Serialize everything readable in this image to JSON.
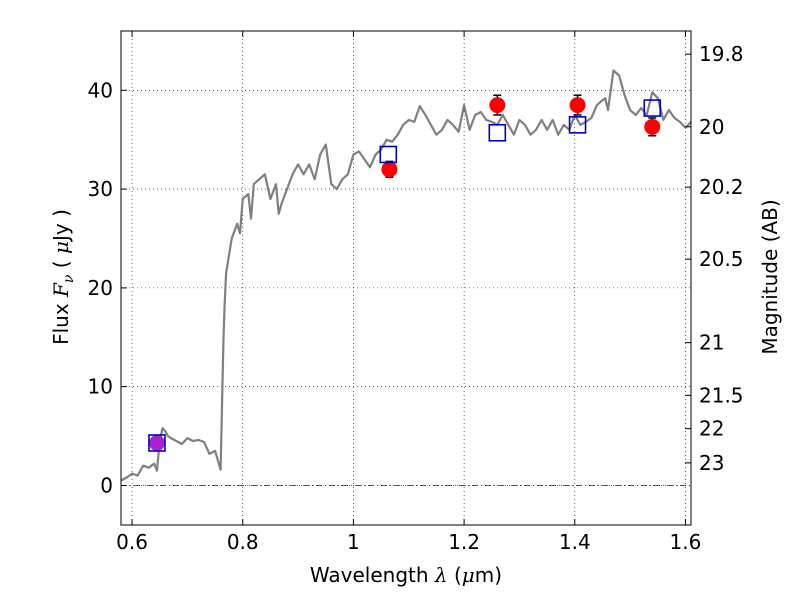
{
  "chart_data": {
    "type": "line",
    "title": "",
    "xlabel": "Wavelength",
    "xlabel_symbol": "λ",
    "xlabel_unit_open": " (",
    "xlabel_unit_symbol": "μ",
    "xlabel_unit_rest": "m)",
    "ylabel": "Flux",
    "ylabel_symbol": "F",
    "ylabel_symbol_sub": "ν",
    "ylabel_unit_open": " ( ",
    "ylabel_unit_symbol": "μ",
    "ylabel_unit_rest": "Jy )",
    "y2label": "Magnitude (AB)",
    "xlim": [
      0.58,
      1.61
    ],
    "ylim": [
      -4,
      46
    ],
    "grid": true,
    "x_ticks": [
      0.6,
      0.8,
      1.0,
      1.2,
      1.4,
      1.6
    ],
    "x_tick_labels": [
      "0.6",
      "0.8",
      "1",
      "1.2",
      "1.4",
      "1.6"
    ],
    "y_ticks": [
      0,
      10,
      20,
      30,
      40
    ],
    "y_tick_labels": [
      "0",
      "10",
      "20",
      "30",
      "40"
    ],
    "y2_ticks": [
      19.8,
      20,
      20.2,
      20.5,
      21,
      21.5,
      22,
      23
    ],
    "y2_tick_labels": [
      "19.8",
      "20",
      "20.2",
      "20.5",
      "21",
      "21.5",
      "22",
      "23"
    ],
    "zero_line": 0,
    "colors": {
      "model": "#808080",
      "observed": "#ff0000",
      "synthetic": "#0000cc",
      "overlap": "#aa22cc",
      "errorbar": "#000000"
    },
    "series": [
      {
        "kind": "spectrum",
        "x": [
          0.58,
          0.59,
          0.6,
          0.61,
          0.62,
          0.63,
          0.64,
          0.645,
          0.65,
          0.655,
          0.66,
          0.665,
          0.67,
          0.68,
          0.69,
          0.7,
          0.71,
          0.72,
          0.73,
          0.74,
          0.75,
          0.76,
          0.765,
          0.767,
          0.77,
          0.78,
          0.79,
          0.795,
          0.8,
          0.81,
          0.815,
          0.82,
          0.83,
          0.84,
          0.85,
          0.86,
          0.865,
          0.87,
          0.88,
          0.89,
          0.9,
          0.91,
          0.92,
          0.93,
          0.94,
          0.95,
          0.96,
          0.97,
          0.98,
          0.99,
          1.0,
          1.01,
          1.02,
          1.03,
          1.04,
          1.05,
          1.06,
          1.07,
          1.08,
          1.09,
          1.1,
          1.11,
          1.12,
          1.13,
          1.14,
          1.15,
          1.16,
          1.17,
          1.18,
          1.19,
          1.2,
          1.21,
          1.22,
          1.23,
          1.24,
          1.25,
          1.26,
          1.27,
          1.28,
          1.29,
          1.3,
          1.31,
          1.32,
          1.33,
          1.34,
          1.35,
          1.36,
          1.37,
          1.38,
          1.39,
          1.4,
          1.41,
          1.42,
          1.43,
          1.44,
          1.45,
          1.455,
          1.46,
          1.47,
          1.48,
          1.49,
          1.5,
          1.51,
          1.52,
          1.53,
          1.54,
          1.55,
          1.56,
          1.57,
          1.58,
          1.59,
          1.6,
          1.61
        ],
        "y": [
          0.5,
          0.8,
          1.2,
          1.0,
          2.0,
          1.8,
          2.2,
          1.5,
          4.5,
          5.8,
          5.5,
          5.0,
          4.8,
          4.5,
          4.2,
          4.8,
          4.5,
          4.6,
          4.4,
          3.2,
          3.5,
          1.6,
          14.5,
          18.0,
          21.5,
          25.0,
          26.5,
          25.5,
          29.0,
          29.5,
          27.0,
          30.5,
          31.0,
          31.5,
          29.0,
          30.5,
          27.5,
          28.5,
          30.0,
          31.5,
          32.5,
          31.5,
          32.5,
          31.0,
          33.5,
          34.5,
          30.5,
          30.0,
          31.0,
          31.5,
          33.5,
          33.8,
          33.0,
          32.2,
          33.5,
          34.0,
          35.0,
          34.8,
          35.5,
          36.5,
          37.0,
          36.8,
          38.4,
          37.5,
          36.5,
          35.5,
          36.0,
          37.0,
          36.5,
          35.8,
          38.5,
          36.0,
          37.5,
          37.8,
          37.0,
          36.8,
          36.5,
          37.5,
          36.5,
          35.5,
          37.0,
          36.5,
          35.5,
          36.0,
          37.0,
          36.0,
          37.0,
          35.5,
          36.5,
          36.0,
          37.5,
          36.5,
          36.8,
          37.2,
          38.5,
          39.0,
          39.2,
          38.0,
          42.0,
          41.5,
          39.5,
          38.0,
          37.5,
          38.2,
          37.5,
          39.8,
          39.2,
          37.0,
          38.0,
          37.2,
          36.8,
          36.2,
          36.8
        ]
      },
      {
        "kind": "observed",
        "x": [
          0.645,
          1.065,
          1.26,
          1.405,
          1.54
        ],
        "y": [
          4.3,
          32.0,
          38.5,
          38.5,
          36.3
        ],
        "err": [
          0.3,
          0.8,
          1.0,
          1.0,
          0.9
        ]
      },
      {
        "kind": "synthetic",
        "x": [
          0.645,
          1.063,
          1.26,
          1.405,
          1.54
        ],
        "y": [
          4.3,
          33.5,
          35.7,
          36.5,
          38.2
        ]
      }
    ]
  }
}
